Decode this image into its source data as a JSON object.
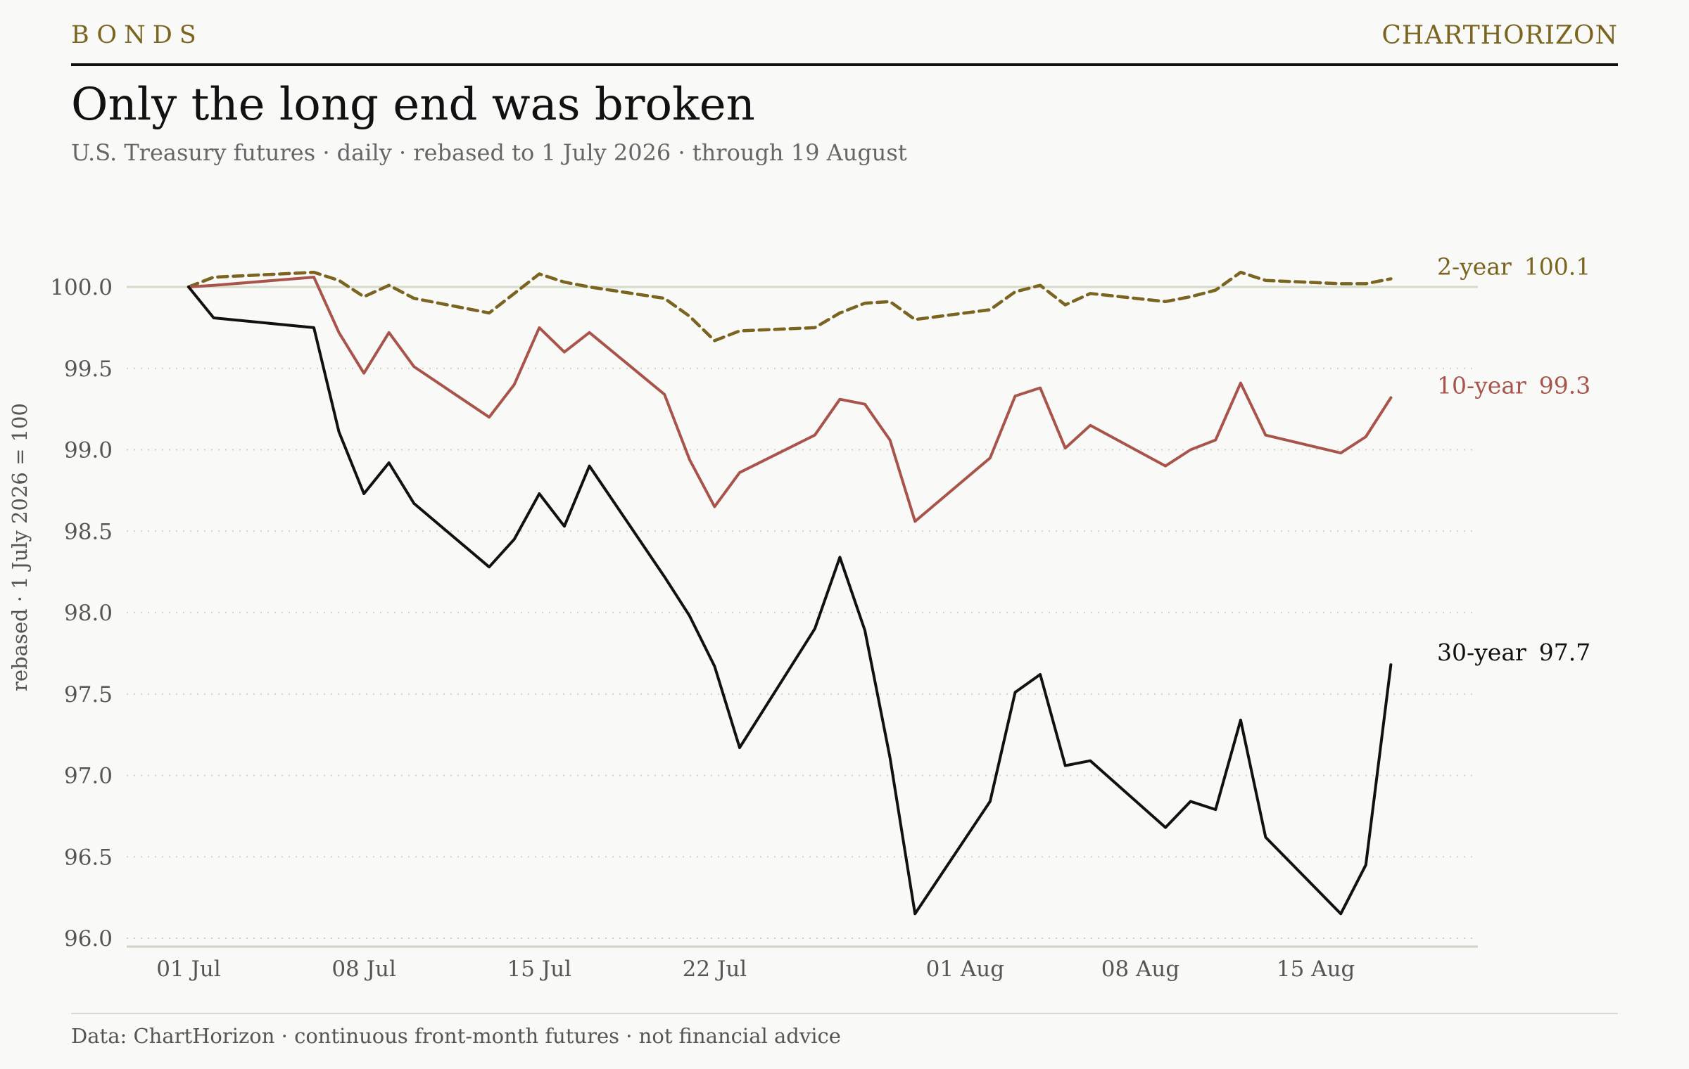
{
  "header": {
    "kicker": "BONDS",
    "brand": "CHARTHORIZON",
    "title": "Only the long end was broken",
    "subtitle": "U.S. Treasury futures · daily · rebased to 1 July 2026 · through 19 August"
  },
  "footer": {
    "source": "Data: ChartHorizon · continuous front-month futures · not financial advice"
  },
  "colors": {
    "two_year": "#7a6420",
    "ten_year": "#a8544a",
    "thirty_year": "#111111",
    "reference_line": "#d6dccb",
    "grid": "#d0d0c8",
    "tick_text": "#555555"
  },
  "chart_data": {
    "type": "line",
    "ylabel": "rebased · 1 July 2026 = 100",
    "ylim": [
      96.0,
      100.0
    ],
    "xlim": [
      "2026-07-01",
      "2026-08-19"
    ],
    "yticks": [
      96.0,
      96.5,
      97.0,
      97.5,
      98.0,
      98.5,
      99.0,
      99.5,
      100.0
    ],
    "ytick_labels": [
      "96.0",
      "96.5",
      "97.0",
      "97.5",
      "98.0",
      "98.5",
      "99.0",
      "99.5",
      "100.0"
    ],
    "xticks": [
      {
        "date": "2026-07-01",
        "label": "01 Jul"
      },
      {
        "date": "2026-07-08",
        "label": "08 Jul"
      },
      {
        "date": "2026-07-15",
        "label": "15 Jul"
      },
      {
        "date": "2026-07-22",
        "label": "22 Jul"
      },
      {
        "date": "2026-08-01",
        "label": "01 Aug"
      },
      {
        "date": "2026-08-08",
        "label": "08 Aug"
      },
      {
        "date": "2026-08-15",
        "label": "15 Aug"
      }
    ],
    "reference_line": 100.0,
    "grid": "horizontal dotted",
    "legend": "direct labels at line ends",
    "series": [
      {
        "name": "2-year",
        "end_label": "100.1",
        "style": "dashed",
        "color": "#7a6420",
        "points": [
          [
            "2026-07-01",
            100.0
          ],
          [
            "2026-07-02",
            100.06
          ],
          [
            "2026-07-06",
            100.09
          ],
          [
            "2026-07-07",
            100.04
          ],
          [
            "2026-07-08",
            99.94
          ],
          [
            "2026-07-09",
            100.01
          ],
          [
            "2026-07-10",
            99.93
          ],
          [
            "2026-07-13",
            99.84
          ],
          [
            "2026-07-14",
            99.96
          ],
          [
            "2026-07-15",
            100.08
          ],
          [
            "2026-07-16",
            100.03
          ],
          [
            "2026-07-17",
            100.0
          ],
          [
            "2026-07-20",
            99.93
          ],
          [
            "2026-07-21",
            99.82
          ],
          [
            "2026-07-22",
            99.67
          ],
          [
            "2026-07-23",
            99.73
          ],
          [
            "2026-07-26",
            99.75
          ],
          [
            "2026-07-27",
            99.84
          ],
          [
            "2026-07-28",
            99.9
          ],
          [
            "2026-07-29",
            99.91
          ],
          [
            "2026-07-30",
            99.8
          ],
          [
            "2026-08-02",
            99.86
          ],
          [
            "2026-08-03",
            99.97
          ],
          [
            "2026-08-04",
            100.01
          ],
          [
            "2026-08-05",
            99.89
          ],
          [
            "2026-08-06",
            99.96
          ],
          [
            "2026-08-09",
            99.91
          ],
          [
            "2026-08-10",
            99.94
          ],
          [
            "2026-08-11",
            99.98
          ],
          [
            "2026-08-12",
            100.09
          ],
          [
            "2026-08-13",
            100.04
          ],
          [
            "2026-08-16",
            100.02
          ],
          [
            "2026-08-17",
            100.02
          ],
          [
            "2026-08-18",
            100.05
          ]
        ]
      },
      {
        "name": "10-year",
        "end_label": "99.3",
        "style": "solid",
        "color": "#a8544a",
        "points": [
          [
            "2026-07-01",
            100.0
          ],
          [
            "2026-07-02",
            100.01
          ],
          [
            "2026-07-06",
            100.06
          ],
          [
            "2026-07-07",
            99.72
          ],
          [
            "2026-07-08",
            99.47
          ],
          [
            "2026-07-09",
            99.72
          ],
          [
            "2026-07-10",
            99.51
          ],
          [
            "2026-07-13",
            99.2
          ],
          [
            "2026-07-14",
            99.4
          ],
          [
            "2026-07-15",
            99.75
          ],
          [
            "2026-07-16",
            99.6
          ],
          [
            "2026-07-17",
            99.72
          ],
          [
            "2026-07-20",
            99.34
          ],
          [
            "2026-07-21",
            98.94
          ],
          [
            "2026-07-22",
            98.65
          ],
          [
            "2026-07-23",
            98.86
          ],
          [
            "2026-07-26",
            99.09
          ],
          [
            "2026-07-27",
            99.31
          ],
          [
            "2026-07-28",
            99.28
          ],
          [
            "2026-07-29",
            99.06
          ],
          [
            "2026-07-30",
            98.56
          ],
          [
            "2026-08-02",
            98.95
          ],
          [
            "2026-08-03",
            99.33
          ],
          [
            "2026-08-04",
            99.38
          ],
          [
            "2026-08-05",
            99.01
          ],
          [
            "2026-08-06",
            99.15
          ],
          [
            "2026-08-09",
            98.9
          ],
          [
            "2026-08-10",
            99.0
          ],
          [
            "2026-08-11",
            99.06
          ],
          [
            "2026-08-12",
            99.41
          ],
          [
            "2026-08-13",
            99.09
          ],
          [
            "2026-08-16",
            98.98
          ],
          [
            "2026-08-17",
            99.08
          ],
          [
            "2026-08-18",
            99.32
          ]
        ]
      },
      {
        "name": "30-year",
        "end_label": "97.7",
        "style": "solid",
        "color": "#111111",
        "points": [
          [
            "2026-07-01",
            100.0
          ],
          [
            "2026-07-02",
            99.81
          ],
          [
            "2026-07-06",
            99.75
          ],
          [
            "2026-07-07",
            99.11
          ],
          [
            "2026-07-08",
            98.73
          ],
          [
            "2026-07-09",
            98.92
          ],
          [
            "2026-07-10",
            98.67
          ],
          [
            "2026-07-13",
            98.28
          ],
          [
            "2026-07-14",
            98.45
          ],
          [
            "2026-07-15",
            98.73
          ],
          [
            "2026-07-16",
            98.53
          ],
          [
            "2026-07-17",
            98.9
          ],
          [
            "2026-07-20",
            98.22
          ],
          [
            "2026-07-21",
            97.98
          ],
          [
            "2026-07-22",
            97.67
          ],
          [
            "2026-07-23",
            97.17
          ],
          [
            "2026-07-26",
            97.9
          ],
          [
            "2026-07-27",
            98.34
          ],
          [
            "2026-07-28",
            97.89
          ],
          [
            "2026-07-29",
            97.11
          ],
          [
            "2026-07-30",
            96.15
          ],
          [
            "2026-08-02",
            96.84
          ],
          [
            "2026-08-03",
            97.51
          ],
          [
            "2026-08-04",
            97.62
          ],
          [
            "2026-08-05",
            97.06
          ],
          [
            "2026-08-06",
            97.09
          ],
          [
            "2026-08-09",
            96.68
          ],
          [
            "2026-08-10",
            96.84
          ],
          [
            "2026-08-11",
            96.79
          ],
          [
            "2026-08-12",
            97.34
          ],
          [
            "2026-08-13",
            96.62
          ],
          [
            "2026-08-16",
            96.15
          ],
          [
            "2026-08-17",
            96.45
          ],
          [
            "2026-08-18",
            97.68
          ]
        ]
      }
    ]
  }
}
